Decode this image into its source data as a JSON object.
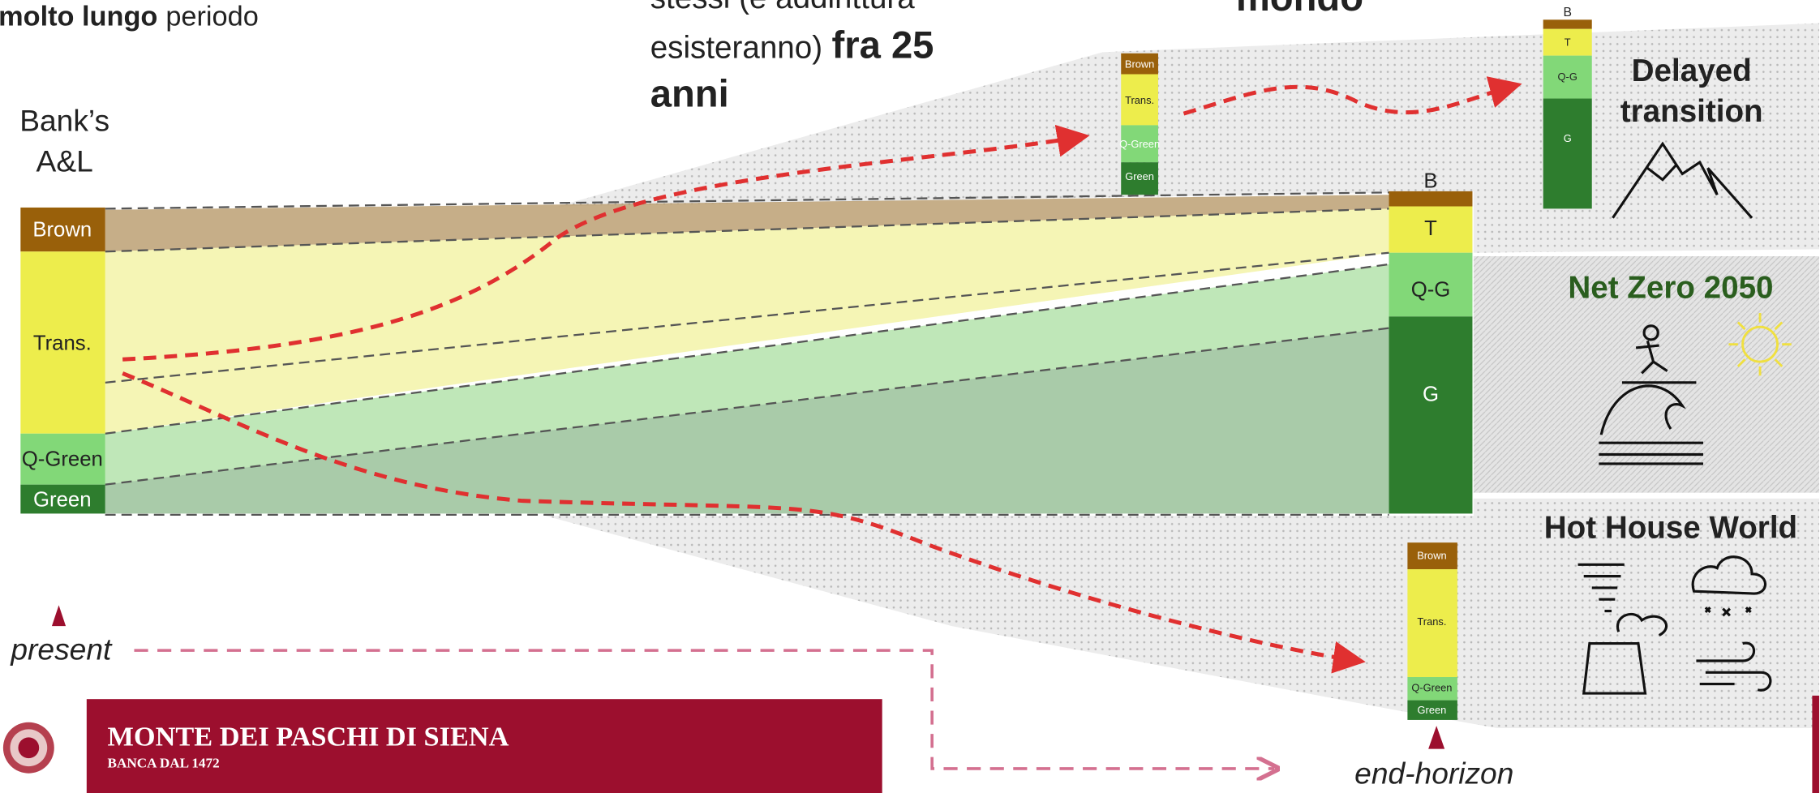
{
  "header": {
    "left_text": {
      "bold": "molto lungo",
      "regular": "periodo"
    },
    "middle_text": {
      "line1": "stessi (e addirittura",
      "line2_regular": "esisteranno)",
      "line2_bold": "fra 25",
      "line3_bold": "anni"
    },
    "right_text": "mondo"
  },
  "present_bar": {
    "title_line1": "Bank’s",
    "title_line2": "A&L",
    "segments": [
      "Brown",
      "Trans.",
      "Q-Green",
      "Green"
    ]
  },
  "transition_bar": [
    "Brown",
    "Trans.",
    "Q-Green",
    "Green"
  ],
  "net_zero_bar": {
    "top_label": "B",
    "segments": [
      "T",
      "Q-G",
      "G"
    ]
  },
  "delayed_bar": {
    "top_label": "B",
    "segments": [
      "T",
      "Q-G",
      "G"
    ]
  },
  "hot_house_bar": [
    "Brown",
    "Trans.",
    "Q-Green",
    "Green"
  ],
  "scenarios": {
    "delayed_line1": "Delayed",
    "delayed_line2": "transition",
    "net_zero": "Net Zero 2050",
    "hot_house": "Hot House World"
  },
  "timeline": {
    "start": "present",
    "end": "end-horizon"
  },
  "footer": {
    "bank_name": "MONTE DEI PASCHI DI SIENA",
    "tagline": "BANCA DAL 1472"
  }
}
